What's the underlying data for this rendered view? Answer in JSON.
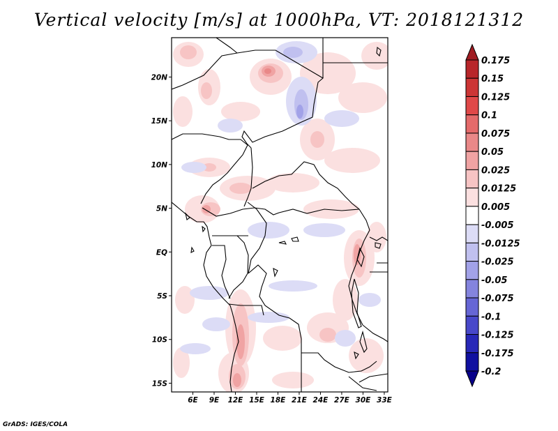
{
  "title": "Vertical velocity [m/s] at 1000hPa, VT: 2018121312",
  "credit": "GrADS: IGES/COLA",
  "map": {
    "lon_range": [
      3,
      33.5
    ],
    "lat_range": [
      -16,
      24.5
    ],
    "lon_ticks": [
      "6E",
      "9E",
      "12E",
      "15E",
      "18E",
      "21E",
      "24E",
      "27E",
      "30E",
      "33E"
    ],
    "lat_ticks": [
      "20N",
      "15N",
      "10N",
      "5N",
      "EQ",
      "5S",
      "10S",
      "15S"
    ]
  },
  "colorbar": {
    "labels": [
      "0.175",
      "0.15",
      "0.125",
      "0.1",
      "0.075",
      "0.05",
      "0.025",
      "0.0125",
      "0.005",
      "-0.005",
      "-0.0125",
      "-0.025",
      "-0.05",
      "-0.075",
      "-0.1",
      "-0.125",
      "-0.175",
      "-0.2"
    ],
    "colors": [
      "#a01c22",
      "#b8262a",
      "#cc3535",
      "#e04848",
      "#e46a6a",
      "#e98888",
      "#f0a3a3",
      "#f7c4c4",
      "#fbe0e0",
      "#ffffff",
      "#dcdcf6",
      "#c0c0ef",
      "#a2a2e8",
      "#8484de",
      "#6666d5",
      "#4848ca",
      "#2828b8",
      "#1010a0",
      "#08008a"
    ]
  }
}
